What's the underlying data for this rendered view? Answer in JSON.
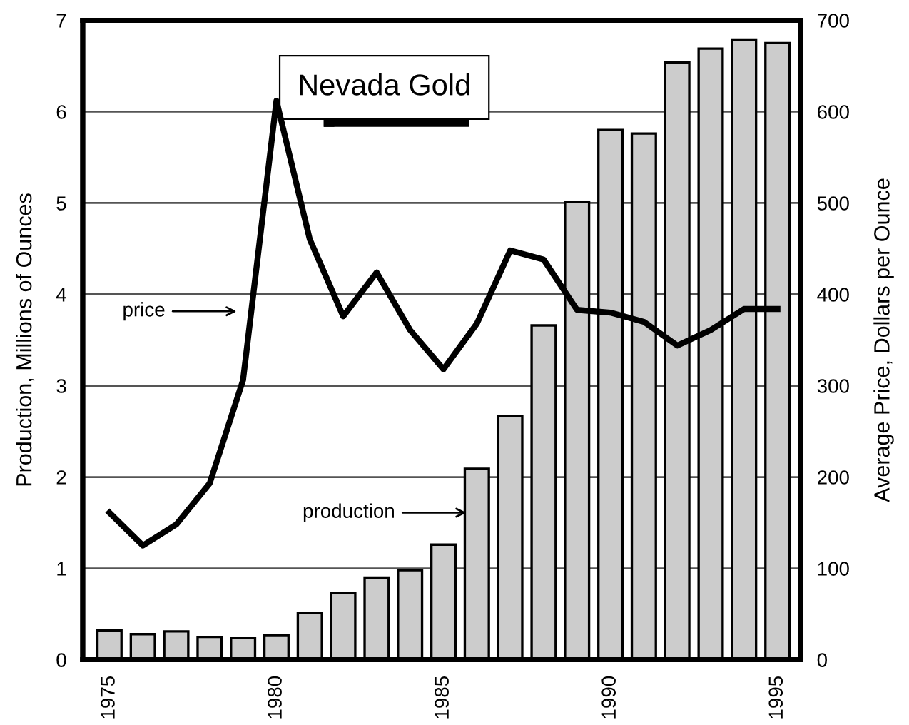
{
  "chart_data": {
    "type": "bar",
    "title": "Nevada Gold",
    "ylabel": "Production, Millions of Ounces",
    "y2label": "Average Price, Dollars per Ounce",
    "x": [
      1975,
      1976,
      1977,
      1978,
      1979,
      1980,
      1981,
      1982,
      1983,
      1984,
      1985,
      1986,
      1987,
      1988,
      1989,
      1990,
      1991,
      1992,
      1993,
      1994,
      1995
    ],
    "series": [
      {
        "color": "#cccccc",
        "values": [
          0.32,
          0.28,
          0.31,
          0.25,
          0.24,
          0.27,
          0.51,
          0.73,
          0.9,
          0.98,
          1.26,
          2.09,
          2.67,
          3.66,
          5.01,
          5.8,
          5.76,
          6.54,
          6.69,
          6.79,
          6.75
        ]
      },
      {
        "type": "line",
        "axis": "y2",
        "color": "#000000",
        "values": [
          161,
          125,
          148,
          193,
          306,
          612,
          460,
          376,
          424,
          361,
          318,
          368,
          448,
          438,
          383,
          380,
          370,
          344,
          361,
          384,
          384
        ]
      }
    ],
    "xlim": [
      1974.2,
      1995.7
    ],
    "xticks": [
      1975,
      1980,
      1985,
      1990,
      1995
    ],
    "ylim": [
      0,
      7
    ],
    "yticks": [
      0,
      1,
      2,
      3,
      4,
      5,
      6,
      7
    ],
    "y2lim": [
      0,
      700
    ],
    "y2ticks": [
      0,
      100,
      200,
      300,
      400,
      500,
      600,
      700
    ],
    "annotations": [
      "price",
      "production"
    ],
    "grid": "y",
    "legend": false,
    "marker": "none",
    "line_style": "solid"
  }
}
